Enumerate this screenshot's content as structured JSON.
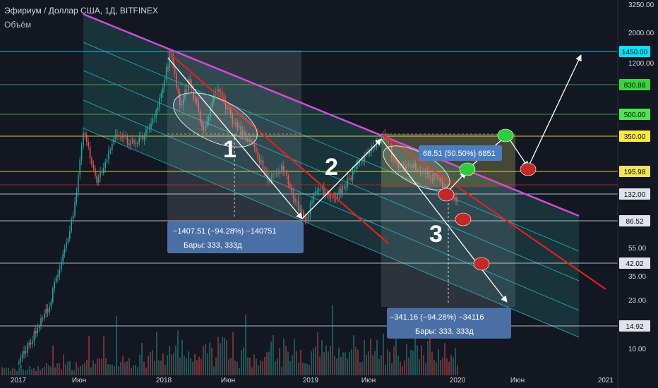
{
  "header": {
    "title": "Эфириум / Доллар США, 1Д, BITFINEX",
    "volume_label": "Объём"
  },
  "colors": {
    "background": "#131722",
    "candle_up": "#26a69a",
    "candle_down": "#ef5350",
    "channel_fill": "#1e4a4e",
    "channel_line": "#26c6da",
    "resistance_line": "#d04dd7",
    "trend_line_red": "#e3201b",
    "level_cyan": "#00e5ff",
    "level_green": "#4caf50",
    "level_yellow": "#ffeb3b",
    "level_white": "#d1d4dc",
    "measure_box": "#4a6fa5",
    "marker_green": "#2ecc40",
    "marker_red": "#c62828"
  },
  "chart_data": {
    "type": "candlestick",
    "symbol": "ETHUSD",
    "exchange": "BITFINEX",
    "interval": "1Д",
    "y_scale": "log",
    "x_ticks": [
      "2017",
      "Июн",
      "2018",
      "Июн",
      "2019",
      "Июн",
      "2020",
      "Июн",
      "2021"
    ],
    "y_ticks": [
      3250,
      2000,
      1200,
      55,
      35,
      23,
      10
    ],
    "price_levels": [
      {
        "label": "1450.00",
        "value": 1450,
        "color": "cyan"
      },
      {
        "label": "830.88",
        "value": 830.88,
        "color": "green"
      },
      {
        "label": "500.00",
        "value": 500,
        "color": "green"
      },
      {
        "label": "350.00",
        "value": 350,
        "color": "yellow"
      },
      {
        "label": "195.98",
        "value": 195.98,
        "color": "yellow"
      },
      {
        "label": "132.00",
        "value": 132,
        "color": "white"
      },
      {
        "label": "86.52",
        "value": 86.52,
        "color": "white"
      },
      {
        "label": "42.02",
        "value": 42.02,
        "color": "white"
      },
      {
        "label": "14.92",
        "value": 14.92,
        "color": "white"
      }
    ],
    "price_path": [
      [
        "2017-01-01",
        8
      ],
      [
        "2017-03-15",
        20
      ],
      [
        "2017-05-15",
        90
      ],
      [
        "2017-06-12",
        390
      ],
      [
        "2017-07-15",
        160
      ],
      [
        "2017-09-01",
        380
      ],
      [
        "2017-10-15",
        300
      ],
      [
        "2017-12-01",
        450
      ],
      [
        "2018-01-13",
        1400
      ],
      [
        "2018-02-06",
        600
      ],
      [
        "2018-03-01",
        900
      ],
      [
        "2018-04-06",
        380
      ],
      [
        "2018-05-06",
        800
      ],
      [
        "2018-06-20",
        450
      ],
      [
        "2018-08-15",
        270
      ],
      [
        "2018-09-13",
        170
      ],
      [
        "2018-10-15",
        210
      ],
      [
        "2018-12-15",
        84
      ],
      [
        "2019-01-10",
        150
      ],
      [
        "2019-03-01",
        130
      ],
      [
        "2019-05-10",
        250
      ],
      [
        "2019-06-26",
        360
      ],
      [
        "2019-08-01",
        210
      ],
      [
        "2019-09-15",
        210
      ],
      [
        "2019-11-01",
        180
      ],
      [
        "2019-12-18",
        125
      ],
      [
        "2020-01-01",
        130
      ]
    ],
    "annotations": {
      "wave_labels": [
        "1",
        "2",
        "3"
      ],
      "measure_1": {
        "line1": "−1407.51 (−94.28%) −140751",
        "line2": "Бары: 333, 333д"
      },
      "measure_2": {
        "line1": "−341.16 (−94.28%) −34116",
        "line2": "Бары: 333, 333д"
      },
      "measure_3": {
        "line1": "68.51 (50.50%) 6851"
      }
    }
  }
}
